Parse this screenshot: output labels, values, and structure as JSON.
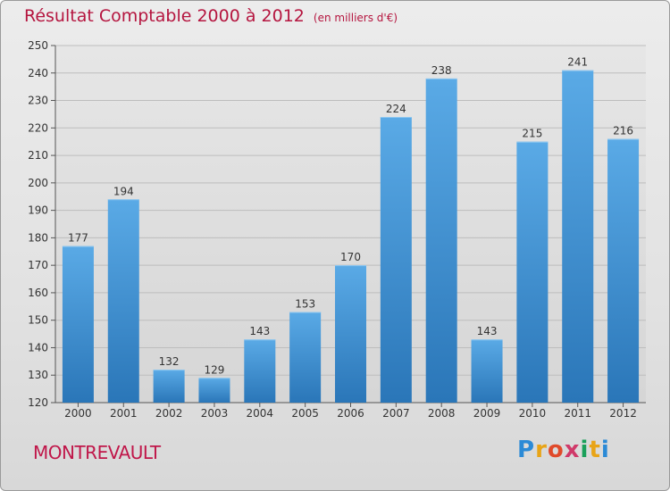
{
  "header": {
    "title": "Résultat Comptable 2000 à 2012",
    "unit": "(en milliers d'€)"
  },
  "footer": {
    "place": "MONTREVAULT",
    "logo": [
      "P",
      "r",
      "o",
      "x",
      "i",
      "t",
      "i"
    ]
  },
  "colors": {
    "title": "#b5153f",
    "bar_top": "#5aaae6",
    "bar_bottom": "#2a76b8",
    "logo": [
      "#2b8ad6",
      "#e8a417",
      "#e04a2a",
      "#d03a6a",
      "#1aa05a",
      "#e8a417",
      "#2b8ad6"
    ]
  },
  "chart_data": {
    "type": "bar",
    "title": "Résultat Comptable 2000 à 2012",
    "unit": "en milliers d'€",
    "categories": [
      "2000",
      "2001",
      "2002",
      "2003",
      "2004",
      "2005",
      "2006",
      "2007",
      "2008",
      "2009",
      "2010",
      "2011",
      "2012"
    ],
    "values": [
      177,
      194,
      132,
      129,
      143,
      153,
      170,
      224,
      238,
      143,
      215,
      241,
      216
    ],
    "ylim": [
      120,
      250
    ],
    "yticks": [
      120,
      130,
      140,
      150,
      160,
      170,
      180,
      190,
      200,
      210,
      220,
      230,
      240,
      250
    ],
    "grid": true,
    "xlabel": "",
    "ylabel": ""
  }
}
